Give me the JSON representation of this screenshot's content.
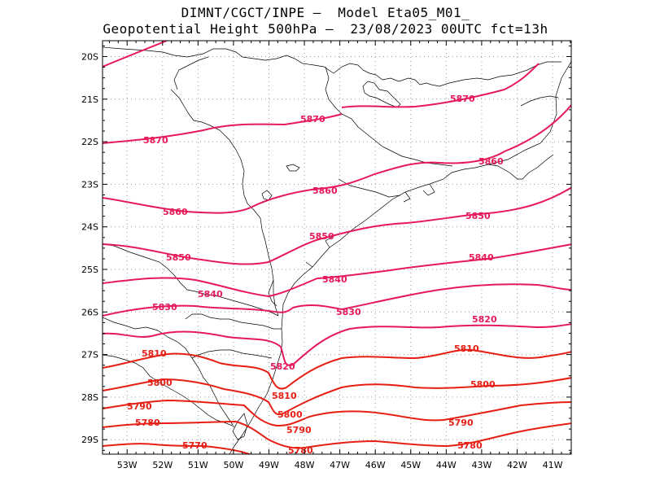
{
  "title_line1": "DIMNT/CGCT/INPE –  Model Eta05_M01_",
  "title_line2": "Geopotential Height 500hPa –  23/08/2023 00UTC fct=13h",
  "lon_labels": [
    "53W",
    "52W",
    "51W",
    "50W",
    "49W",
    "48W",
    "47W",
    "46W",
    "45W",
    "44W",
    "43W",
    "42W",
    "41W"
  ],
  "lat_labels": [
    "20S",
    "21S",
    "22S",
    "23S",
    "24S",
    "25S",
    "26S",
    "27S",
    "28S",
    "29S"
  ],
  "colors": {
    "high": "#e6195a",
    "low": "#e61e14",
    "grid": "#9a9a9a",
    "coast": "#000000"
  },
  "contours": [
    {
      "value": "5870",
      "color": "#e6195a",
      "labels": [
        "5870",
        "5870",
        "5870"
      ]
    },
    {
      "value": "5860",
      "color": "#e6195a",
      "labels": [
        "5860",
        "5860",
        "5860"
      ]
    },
    {
      "value": "5850",
      "color": "#e6195a",
      "labels": [
        "5850",
        "5850",
        "5850"
      ]
    },
    {
      "value": "5840",
      "color": "#e6195a",
      "labels": [
        "5840",
        "5840",
        "5840"
      ]
    },
    {
      "value": "5830",
      "color": "#e6195a",
      "labels": [
        "5830",
        "5830"
      ]
    },
    {
      "value": "5820",
      "color": "#e6195a",
      "labels": [
        "5820",
        "5820"
      ]
    },
    {
      "value": "5810",
      "color": "#e61e14",
      "labels": [
        "5810",
        "5810",
        "5810"
      ]
    },
    {
      "value": "5800",
      "color": "#e61e14",
      "labels": [
        "5800",
        "5800",
        "5800"
      ]
    },
    {
      "value": "5790",
      "color": "#e61e14",
      "labels": [
        "5790",
        "5790",
        "5790"
      ]
    },
    {
      "value": "5780",
      "color": "#e61e14",
      "labels": [
        "5780",
        "5780",
        "5780"
      ]
    },
    {
      "value": "5770",
      "color": "#e61e14",
      "labels": [
        "5770"
      ]
    }
  ]
}
